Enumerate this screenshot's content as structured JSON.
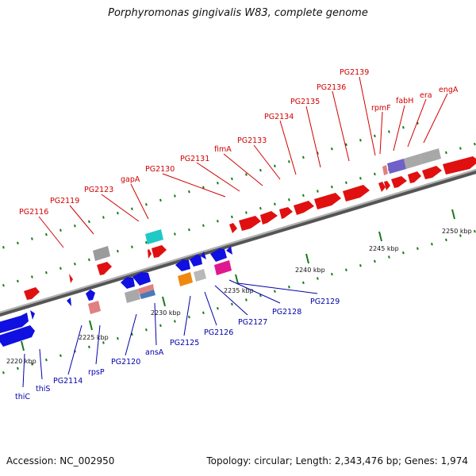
{
  "title": "Porphyromonas gingivalis W83, complete genome",
  "footer": {
    "accession": "Accession: NC_002950",
    "summary": "Topology: circular; Length: 2,343,476 bp; Genes: 1,974"
  },
  "colors": {
    "forward_gene": "#e01010",
    "reverse_gene": "#1010e0",
    "backbone": "#808080",
    "track_dot": "#1a7a1a",
    "forward_label": "#d10000",
    "reverse_label": "#0000aa"
  },
  "scale_ticks": [
    "2220 kbp",
    "2225 kbp",
    "2230 kbp",
    "2235 kbp",
    "2240 kbp",
    "2245 kbp",
    "2250 kbp"
  ],
  "forward_labels": [
    "PG2116",
    "PG2119",
    "PG2123",
    "gapA",
    "PG2130",
    "PG2131",
    "fimA",
    "PG2133",
    "PG2134",
    "PG2135",
    "PG2136",
    "PG2139",
    "rpmF",
    "fabH",
    "era",
    "engA"
  ],
  "reverse_labels": [
    "thiC",
    "thiS",
    "PG2114",
    "rpsP",
    "PG2120",
    "ansA",
    "PG2125",
    "PG2126",
    "PG2127",
    "PG2128",
    "PG2129"
  ]
}
